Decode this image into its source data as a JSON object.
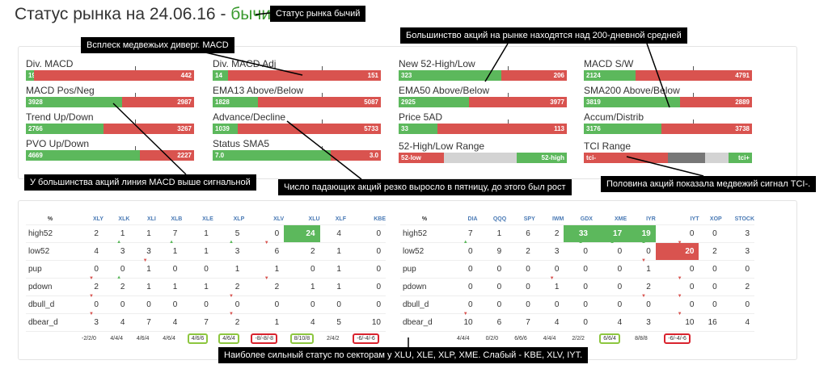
{
  "title": {
    "prefix": "Статус рынка на 24.06.16 - ",
    "status": "бычий"
  },
  "indicators": [
    {
      "label": "Div. MACD",
      "left": "19",
      "right": "442",
      "pct": 5
    },
    {
      "label": "Div. MACD Adj",
      "left": "14",
      "right": "151",
      "pct": 9
    },
    {
      "label": "New 52-High/Low",
      "left": "323",
      "right": "206",
      "pct": 61
    },
    {
      "label": "MACD S/W",
      "left": "2124",
      "right": "4791",
      "pct": 31
    },
    {
      "label": "MACD Pos/Neg",
      "left": "3928",
      "right": "2987",
      "pct": 57
    },
    {
      "label": "EMA13 Above/Below",
      "left": "1828",
      "right": "5087",
      "pct": 27
    },
    {
      "label": "EMA50 Above/Below",
      "left": "2925",
      "right": "3977",
      "pct": 42
    },
    {
      "label": "SMA200 Above/Below",
      "left": "3819",
      "right": "2889",
      "pct": 57
    },
    {
      "label": "Trend Up/Down",
      "left": "2766",
      "right": "3267",
      "pct": 46
    },
    {
      "label": "Advance/Decline",
      "left": "1039",
      "right": "5733",
      "pct": 15
    },
    {
      "label": "Price 5AD",
      "left": "33",
      "right": "113",
      "pct": 23
    },
    {
      "label": "Accum/Distrib",
      "left": "3176",
      "right": "3738",
      "pct": 46
    },
    {
      "label": "PVO Up/Down",
      "left": "4669",
      "right": "2227",
      "pct": 68
    },
    {
      "label": "Status SMA5",
      "left": "7.0",
      "right": "3.0",
      "pct": 70
    }
  ],
  "range1": {
    "label": "52-High/Low Range",
    "low": "52-low",
    "high": "52-high"
  },
  "range2": {
    "label": "TCI Range",
    "low": "tci-",
    "high": "tci+"
  },
  "annotations": {
    "status": "Статус рынка бычий",
    "macd_div": "Всплеск медвежьих диверг. MACD",
    "majority": "Большинство акций на рынке находятся над 200-дневной средней",
    "macd_signal": "У большинства акций линия MACD выше сигнальной",
    "falling": "Число падающих акций резко выросло в пятницу, до этого был рост",
    "tci": "Половина акций показала медвежий сигнал TCI-.",
    "sectors": "Наиболее сильный статус по секторам у XLU, XLE,  XLP, XME. Слабый - KBE, XLV, IYT."
  },
  "table1": {
    "headers": [
      "%",
      "XLY",
      "XLK",
      "XLI",
      "XLB",
      "XLE",
      "XLP",
      "XLV",
      "XLU",
      "XLF",
      "KBE"
    ],
    "rows": [
      {
        "name": "high52",
        "values": [
          "2",
          "1",
          "1",
          "7",
          "1",
          "5",
          "0",
          "24",
          "4",
          "0"
        ]
      },
      {
        "name": "low52",
        "values": [
          "4",
          "3",
          "3",
          "1",
          "1",
          "3",
          "6",
          "2",
          "1",
          "0"
        ]
      },
      {
        "name": "pup",
        "values": [
          "0",
          "0",
          "1",
          "0",
          "0",
          "1",
          "1",
          "0",
          "1",
          "0"
        ]
      },
      {
        "name": "pdown",
        "values": [
          "2",
          "2",
          "1",
          "1",
          "1",
          "2",
          "2",
          "1",
          "1",
          "0"
        ]
      },
      {
        "name": "dbull_d",
        "values": [
          "0",
          "0",
          "0",
          "0",
          "0",
          "0",
          "0",
          "0",
          "0",
          "0"
        ]
      },
      {
        "name": "dbear_d",
        "values": [
          "3",
          "4",
          "7",
          "4",
          "7",
          "2",
          "1",
          "4",
          "5",
          "10"
        ]
      }
    ],
    "summary": [
      "-2/2/0",
      "4/4/4",
      "4/6/4",
      "4/6/4",
      "4/6/6",
      "4/6/4",
      "-8/-8/-8",
      "8/10/8",
      "2/4/2",
      "-6/-4/-6"
    ]
  },
  "table2": {
    "headers": [
      "%",
      "DIA",
      "QQQ",
      "SPY",
      "IWM",
      "GDX",
      "XME",
      "IYR",
      "IYT",
      "XOP",
      "STOCK"
    ],
    "rows": [
      {
        "name": "high52",
        "values": [
          "7",
          "1",
          "6",
          "2",
          "33",
          "17",
          "19",
          "0",
          "0",
          "3"
        ]
      },
      {
        "name": "low52",
        "values": [
          "0",
          "9",
          "2",
          "3",
          "0",
          "0",
          "0",
          "20",
          "2",
          "3"
        ]
      },
      {
        "name": "pup",
        "values": [
          "0",
          "0",
          "0",
          "0",
          "0",
          "0",
          "1",
          "0",
          "0",
          "0"
        ]
      },
      {
        "name": "pdown",
        "values": [
          "0",
          "0",
          "0",
          "1",
          "0",
          "0",
          "2",
          "0",
          "0",
          "2"
        ]
      },
      {
        "name": "dbull_d",
        "values": [
          "0",
          "0",
          "0",
          "0",
          "0",
          "0",
          "0",
          "0",
          "0",
          "0"
        ]
      },
      {
        "name": "dbear_d",
        "values": [
          "10",
          "6",
          "7",
          "4",
          "0",
          "4",
          "3",
          "10",
          "16",
          "4"
        ]
      }
    ],
    "summary": [
      "4/4/4",
      "0/2/0",
      "6/6/6",
      "4/4/4",
      "2/2/2",
      "6/6/4",
      "8/8/8",
      "-6/-4/-6",
      "",
      ""
    ]
  },
  "colors": {
    "green": "#5cb85c",
    "red": "#d9534f",
    "gray": "#808080",
    "highlight_green": "#8dc63f",
    "highlight_red": "#d9232e"
  }
}
